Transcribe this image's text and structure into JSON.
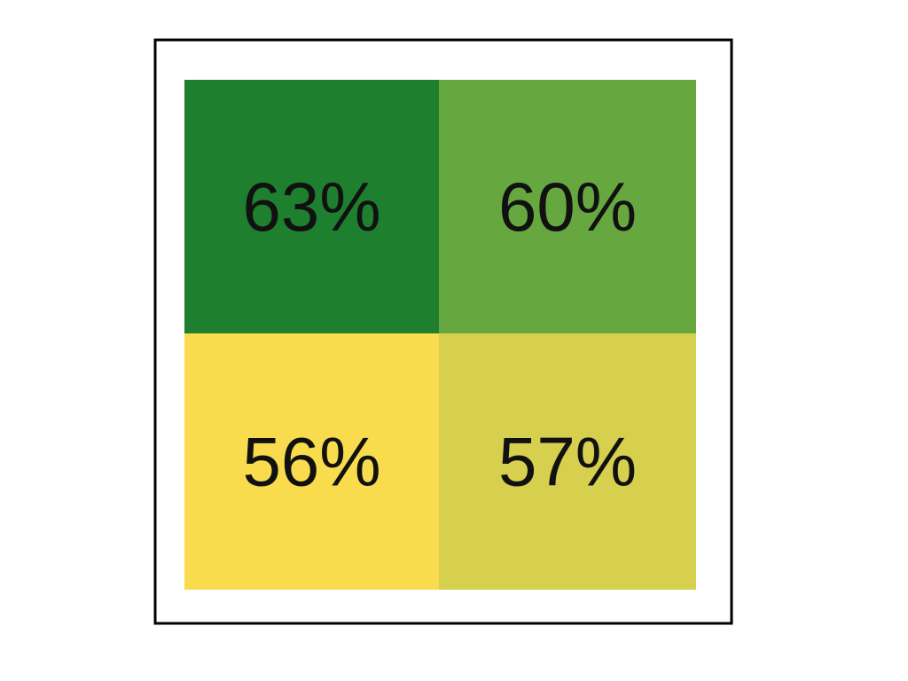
{
  "chart_data": {
    "type": "heatmap",
    "rows": 2,
    "cols": 2,
    "values": [
      [
        63,
        60
      ],
      [
        56,
        57
      ]
    ],
    "labels": [
      [
        "63%",
        "60%"
      ],
      [
        "56%",
        "57%"
      ]
    ],
    "colors": [
      [
        "#1e7f2e",
        "#66a83f"
      ],
      [
        "#f9dc4d",
        "#d7cf4e"
      ]
    ],
    "title": "",
    "legend": false
  }
}
